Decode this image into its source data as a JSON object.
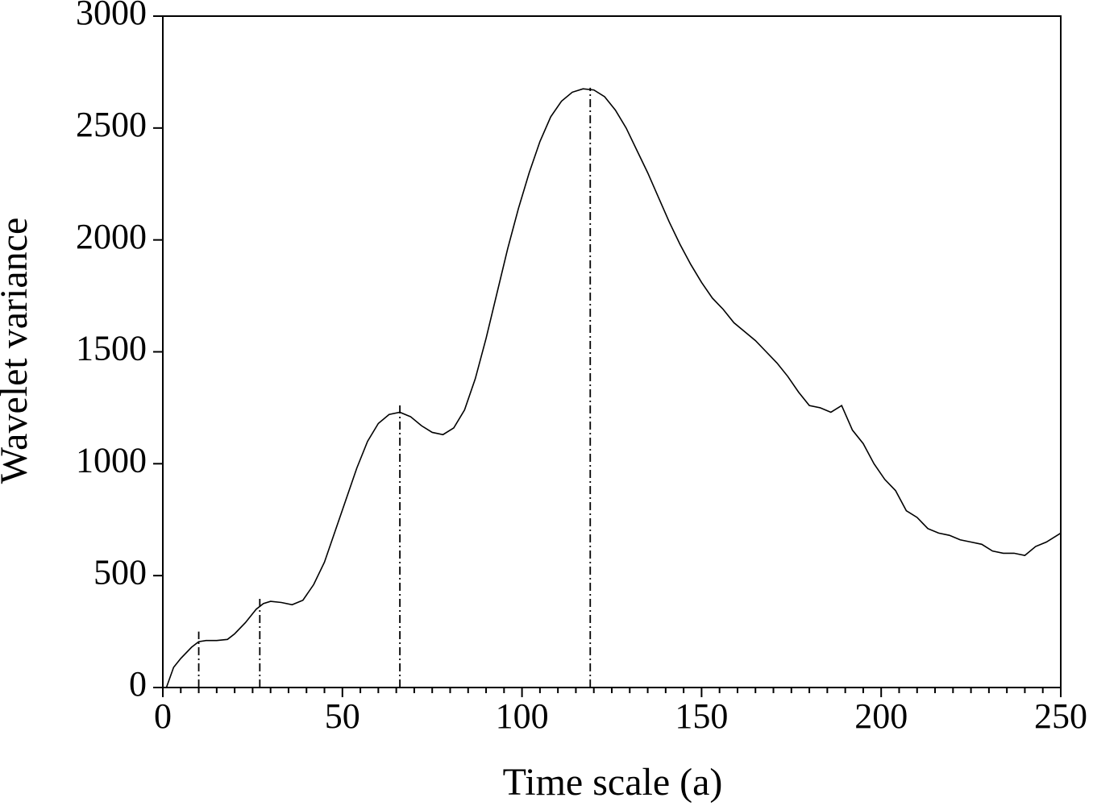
{
  "chart_data": {
    "type": "line",
    "x_label": "Time scale (a)",
    "y_label": "Wavelet variance",
    "xlim": [
      0,
      250
    ],
    "ylim": [
      0,
      3000
    ],
    "xticks": [
      0,
      50,
      100,
      150,
      200,
      250
    ],
    "xminorticks": [
      5,
      10,
      15,
      20,
      25,
      30,
      35,
      40,
      45,
      55,
      60,
      65,
      70,
      75,
      80,
      85,
      90,
      95,
      105,
      110,
      115,
      120,
      125,
      130,
      135,
      140,
      145,
      155,
      160,
      165,
      170,
      175,
      180,
      185,
      190,
      195,
      205,
      210,
      215,
      220,
      225,
      230,
      235,
      240,
      245
    ],
    "yticks": [
      0,
      500,
      1000,
      1500,
      2000,
      2500,
      3000
    ],
    "color": "#000000",
    "x": [
      1,
      3,
      5,
      8,
      10,
      12,
      15,
      18,
      20,
      23,
      26,
      28,
      30,
      33,
      36,
      39,
      42,
      45,
      48,
      51,
      54,
      57,
      60,
      63,
      66,
      69,
      72,
      75,
      78,
      81,
      84,
      87,
      90,
      93,
      96,
      99,
      102,
      105,
      108,
      111,
      114,
      117,
      120,
      123,
      126,
      129,
      132,
      135,
      138,
      141,
      144,
      147,
      150,
      153,
      156,
      159,
      162,
      165,
      168,
      171,
      174,
      177,
      180,
      183,
      186,
      189,
      192,
      195,
      198,
      201,
      204,
      207,
      210,
      213,
      216,
      219,
      222,
      225,
      228,
      231,
      234,
      237,
      240,
      243,
      246,
      250
    ],
    "values": [
      0,
      90,
      130,
      180,
      205,
      210,
      210,
      215,
      240,
      290,
      350,
      375,
      385,
      380,
      370,
      390,
      460,
      560,
      700,
      840,
      980,
      1100,
      1180,
      1220,
      1230,
      1210,
      1170,
      1140,
      1130,
      1160,
      1240,
      1380,
      1560,
      1760,
      1960,
      2140,
      2300,
      2440,
      2550,
      2620,
      2660,
      2675,
      2670,
      2640,
      2580,
      2500,
      2400,
      2300,
      2190,
      2080,
      1980,
      1890,
      1810,
      1740,
      1690,
      1630,
      1590,
      1550,
      1500,
      1450,
      1390,
      1320,
      1260,
      1250,
      1230,
      1260,
      1150,
      1090,
      1000,
      930,
      880,
      790,
      760,
      710,
      690,
      680,
      660,
      650,
      640,
      610,
      600,
      600,
      590,
      630,
      650,
      690
    ],
    "markers": [
      {
        "x": 10,
        "y": 250
      },
      {
        "x": 27,
        "y": 400
      },
      {
        "x": 66,
        "y": 1270
      },
      {
        "x": 119,
        "y": 2680
      }
    ]
  }
}
